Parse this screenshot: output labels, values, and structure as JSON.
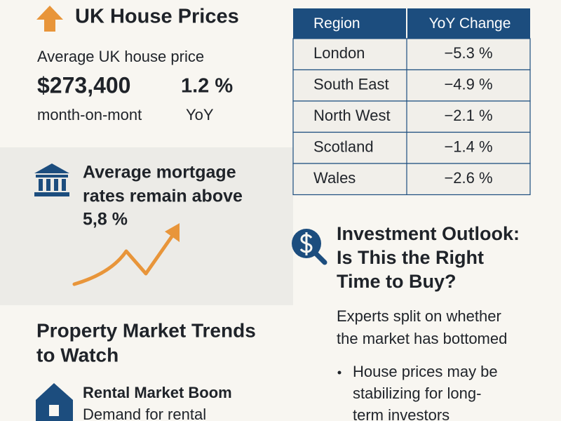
{
  "header": {
    "title": "UK House Prices"
  },
  "price": {
    "label": "Average UK house price",
    "value": "$273,400",
    "change": "1.2 %",
    "value_caption": "month-on-mont",
    "change_caption": "YoY"
  },
  "mortgage": {
    "lines": [
      "Average mortgage",
      "rates remain above",
      "5,8 %"
    ]
  },
  "trends": {
    "title_lines": [
      "Property Market Trends",
      "to Watch"
    ],
    "items": [
      {
        "title": "Rental Market Boom",
        "text": "Demand for rental"
      }
    ]
  },
  "table": {
    "header": [
      "Region",
      "YoY Change"
    ],
    "rows": [
      [
        "London",
        "−5.3 %"
      ],
      [
        "South East",
        "−4.9 %"
      ],
      [
        "North West",
        "−2.1 %"
      ],
      [
        "Scotland",
        "−1.4 %"
      ],
      [
        "Wales",
        "−2.6 %"
      ]
    ]
  },
  "outlook": {
    "title_lines": [
      "Investment Outlook:",
      "Is This the Right",
      "Time to Buy?"
    ],
    "text_lines": [
      "Experts split on whether",
      "the market has bottomed"
    ],
    "bullets": [
      {
        "lines": [
          "House prices may be",
          "stabilizing for long-",
          "term investors"
        ]
      }
    ]
  }
}
